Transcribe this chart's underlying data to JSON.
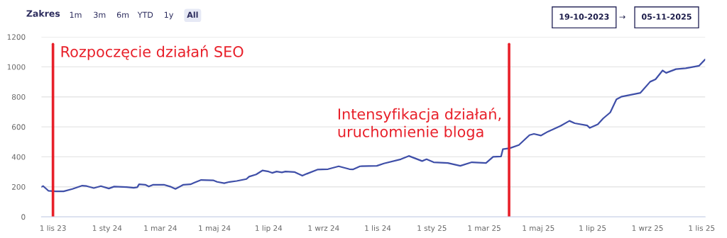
{
  "chart_data": {
    "type": "line",
    "x": [
      "2023-10-19",
      "2023-10-21",
      "2023-10-27",
      "2023-11-04",
      "2023-11-13",
      "2023-11-23",
      "2023-12-04",
      "2023-12-09",
      "2023-12-17",
      "2023-12-25",
      "2024-01-03",
      "2024-01-09",
      "2024-01-23",
      "2024-01-31",
      "2024-02-04",
      "2024-02-06",
      "2024-02-13",
      "2024-02-17",
      "2024-02-22",
      "2024-03-05",
      "2024-03-12",
      "2024-03-18",
      "2024-03-27",
      "2024-04-04",
      "2024-04-08",
      "2024-04-16",
      "2024-04-30",
      "2024-05-04",
      "2024-05-12",
      "2024-05-18",
      "2024-05-26",
      "2024-06-06",
      "2024-06-09",
      "2024-06-17",
      "2024-06-24",
      "2024-07-01",
      "2024-07-05",
      "2024-07-10",
      "2024-07-16",
      "2024-07-20",
      "2024-07-30",
      "2024-08-08",
      "2024-08-13",
      "2024-08-25",
      "2024-09-06",
      "2024-09-18",
      "2024-09-30",
      "2024-10-04",
      "2024-10-12",
      "2024-10-31",
      "2024-11-08",
      "2024-11-27",
      "2024-12-06",
      "2024-12-21",
      "2024-12-26",
      "2025-01-03",
      "2025-01-19",
      "2025-02-02",
      "2025-02-15",
      "2025-03-03",
      "2025-03-11",
      "2025-03-20",
      "2025-03-22",
      "2025-03-30",
      "2025-04-09",
      "2025-04-21",
      "2025-04-26",
      "2025-05-04",
      "2025-05-12",
      "2025-05-26",
      "2025-06-05",
      "2025-06-11",
      "2025-06-25",
      "2025-06-28",
      "2025-07-07",
      "2025-07-13",
      "2025-07-21",
      "2025-07-28",
      "2025-08-03",
      "2025-08-24",
      "2025-09-04",
      "2025-09-10",
      "2025-09-18",
      "2025-09-22",
      "2025-10-03",
      "2025-10-14",
      "2025-10-26",
      "2025-10-29",
      "2025-11-05"
    ],
    "series": [
      {
        "color": "#3f4fa8",
        "values": [
          200,
          205,
          173,
          170,
          170,
          186,
          208,
          205,
          192,
          205,
          189,
          202,
          198,
          194,
          197,
          217,
          214,
          202,
          214,
          214,
          202,
          186,
          214,
          217,
          227,
          246,
          243,
          233,
          224,
          233,
          239,
          252,
          268,
          283,
          309,
          302,
          293,
          302,
          296,
          302,
          299,
          274,
          287,
          315,
          318,
          337,
          318,
          316,
          337,
          340,
          356,
          384,
          406,
          372,
          384,
          364,
          359,
          340,
          364,
          359,
          400,
          403,
          451,
          458,
          479,
          545,
          553,
          542,
          569,
          606,
          640,
          624,
          609,
          593,
          617,
          656,
          696,
          783,
          802,
          827,
          901,
          917,
          976,
          960,
          985,
          991,
          1004,
          1007,
          1050
        ]
      }
    ],
    "xlim": [
      "2023-10-19",
      "2025-11-05"
    ],
    "xticks": [
      {
        "value": "2023-11-01",
        "label": "1 lis 23"
      },
      {
        "value": "2024-01-01",
        "label": "1 sty 24"
      },
      {
        "value": "2024-03-01",
        "label": "1 mar 24"
      },
      {
        "value": "2024-05-01",
        "label": "1 maj 24"
      },
      {
        "value": "2024-07-01",
        "label": "1 lip 24"
      },
      {
        "value": "2024-09-01",
        "label": "1 wrz 24"
      },
      {
        "value": "2024-11-01",
        "label": "1 lis 24"
      },
      {
        "value": "2025-01-01",
        "label": "1 sty 25"
      },
      {
        "value": "2025-03-01",
        "label": "1 mar 25"
      },
      {
        "value": "2025-05-01",
        "label": "1 maj 25"
      },
      {
        "value": "2025-07-01",
        "label": "1 lip 25"
      },
      {
        "value": "2025-09-01",
        "label": "1 wrz 25"
      },
      {
        "value": "2025-11-01",
        "label": "1 lis 25"
      }
    ],
    "ylim": [
      0,
      1200
    ],
    "yticks": [
      0,
      200,
      400,
      600,
      800,
      1000,
      1200
    ],
    "grid": "y",
    "marker": "none",
    "line_style": "solid",
    "ref_lines": [
      {
        "axis": "x",
        "value": "2023-11-01",
        "label": "Rozpoczęcie działań SEO",
        "color": "#e8202a"
      },
      {
        "axis": "x",
        "value": "2025-03-29",
        "label": "Intensyfikacja działań,\nuruchomienie bloga",
        "color": "#e8202a"
      }
    ],
    "annotations": [
      "Zakres",
      "1m",
      "3m",
      "6m",
      "YTD",
      "1y",
      "All",
      "19-10-2023",
      "→",
      "05-11-2025"
    ]
  }
}
